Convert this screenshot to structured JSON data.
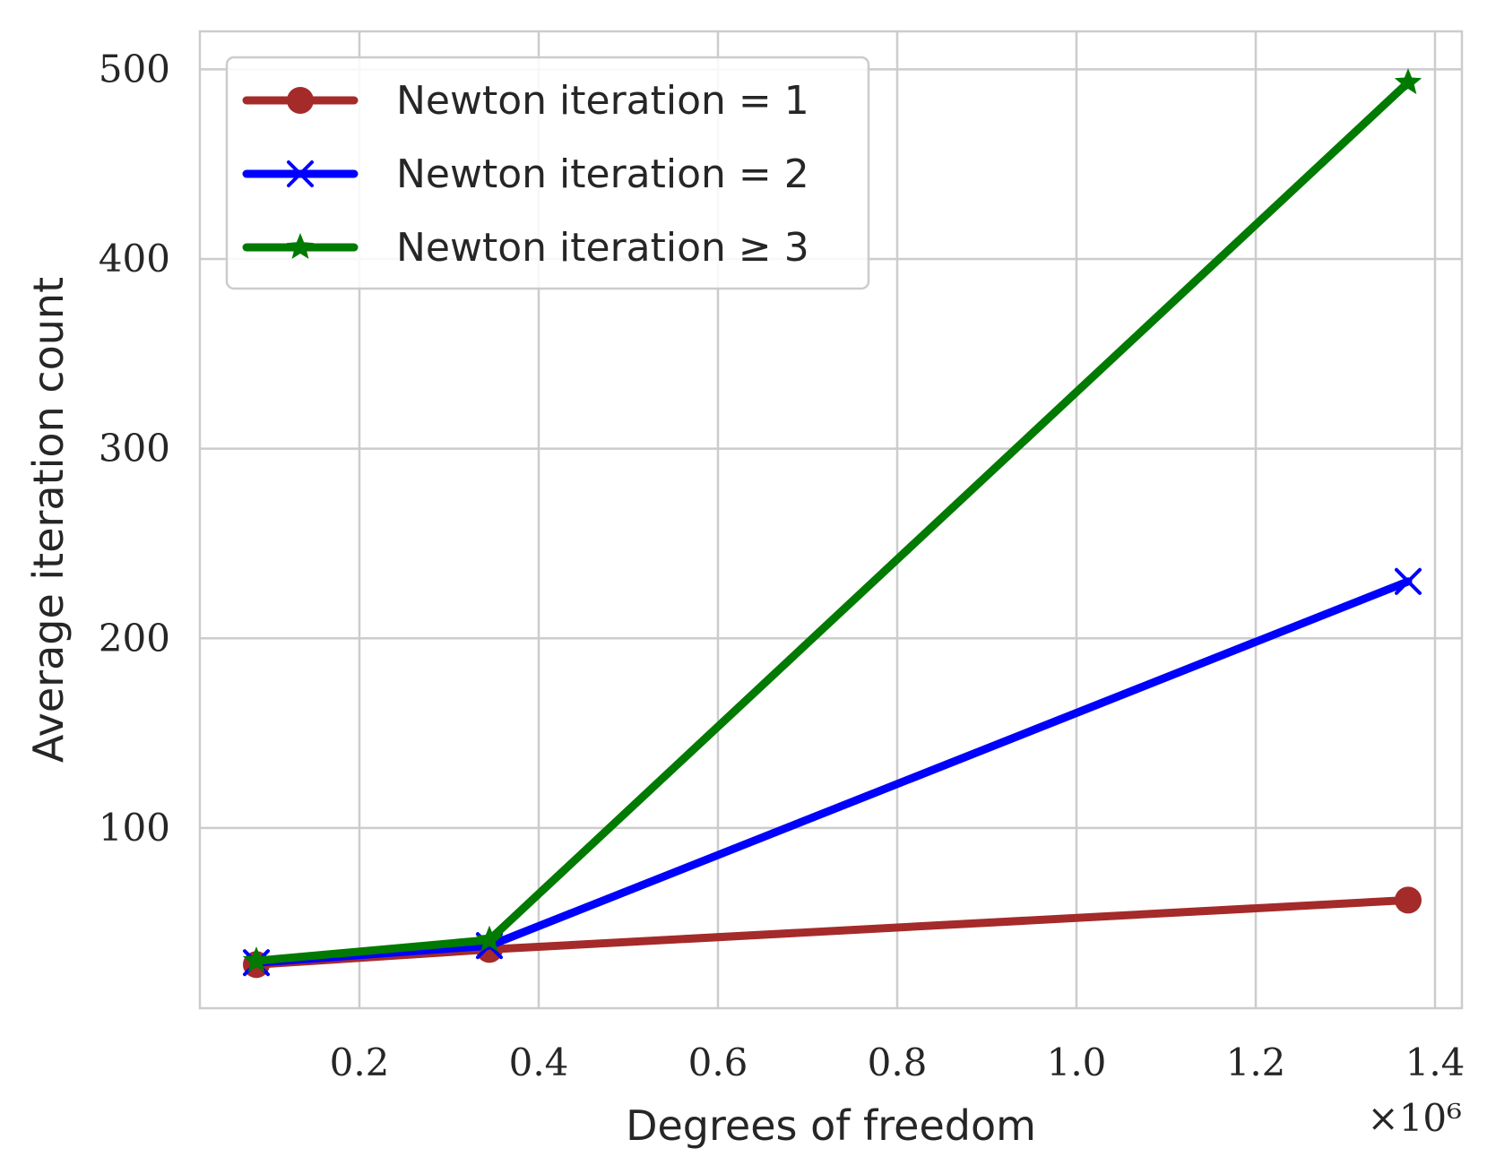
{
  "chart_data": {
    "type": "line",
    "xlabel": "Degrees of freedom",
    "ylabel": "Average iteration count",
    "x_offset_label": "×10⁶",
    "x_scale_factor": 1000000,
    "xlim": [
      0.022,
      1.43
    ],
    "ylim": [
      5,
      520
    ],
    "xticks": [
      0.2,
      0.4,
      0.6,
      0.8,
      1.0,
      1.2,
      1.4
    ],
    "xtick_labels": [
      "0.2",
      "0.4",
      "0.6",
      "0.8",
      "1.0",
      "1.2",
      "1.4"
    ],
    "yticks": [
      100,
      200,
      300,
      400,
      500
    ],
    "ytick_labels": [
      "100",
      "200",
      "300",
      "400",
      "500"
    ],
    "grid": true,
    "legend_position": "top-left",
    "x": [
      0.085,
      0.345,
      1.37
    ],
    "series": [
      {
        "name": "Newton iteration = 1",
        "values": [
          28,
          36,
          62
        ],
        "color": "#a52a2a",
        "marker": "circle"
      },
      {
        "name": "Newton iteration = 2",
        "values": [
          29,
          38,
          230
        ],
        "color": "#0000ff",
        "marker": "x"
      },
      {
        "name": "Newton iteration ≥ 3",
        "values": [
          30,
          41,
          493
        ],
        "color": "#007a00",
        "marker": "star"
      }
    ]
  }
}
